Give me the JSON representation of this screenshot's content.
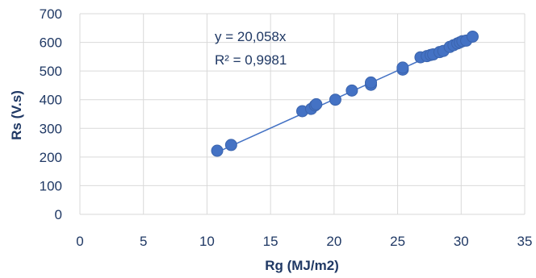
{
  "chart_data": {
    "type": "scatter",
    "xlabel": "Rg (MJ/m2)",
    "ylabel": "Rs (V.s)",
    "xlim": [
      0,
      35
    ],
    "ylim": [
      0,
      700
    ],
    "x_ticks": [
      "0",
      "5",
      "10",
      "15",
      "20",
      "25",
      "30",
      "35"
    ],
    "y_ticks": [
      "0",
      "100",
      "200",
      "300",
      "400",
      "500",
      "600",
      "700"
    ],
    "grid": true,
    "trendline": {
      "slope": 20.058,
      "x_range": [
        10.8,
        30.9
      ]
    },
    "annotations": {
      "equation": "y = 20,058x",
      "r_squared": "R² = 0,9981"
    },
    "points": [
      [
        10.8,
        222
      ],
      [
        11.9,
        242
      ],
      [
        17.5,
        360
      ],
      [
        18.2,
        368
      ],
      [
        18.5,
        380
      ],
      [
        18.6,
        384
      ],
      [
        20.1,
        400
      ],
      [
        21.4,
        432
      ],
      [
        22.9,
        452
      ],
      [
        22.9,
        460
      ],
      [
        25.4,
        505
      ],
      [
        25.4,
        512
      ],
      [
        26.8,
        548
      ],
      [
        27.3,
        552
      ],
      [
        27.6,
        556
      ],
      [
        27.8,
        558
      ],
      [
        28.3,
        566
      ],
      [
        28.6,
        570
      ],
      [
        29.1,
        584
      ],
      [
        29.4,
        590
      ],
      [
        29.7,
        596
      ],
      [
        29.9,
        600
      ],
      [
        30.1,
        604
      ],
      [
        30.4,
        606
      ],
      [
        30.9,
        620
      ]
    ],
    "colors": {
      "marker": "#4472C4",
      "line": "#4472C4",
      "grid": "#D9D9D9",
      "text": "#1F3864"
    }
  }
}
